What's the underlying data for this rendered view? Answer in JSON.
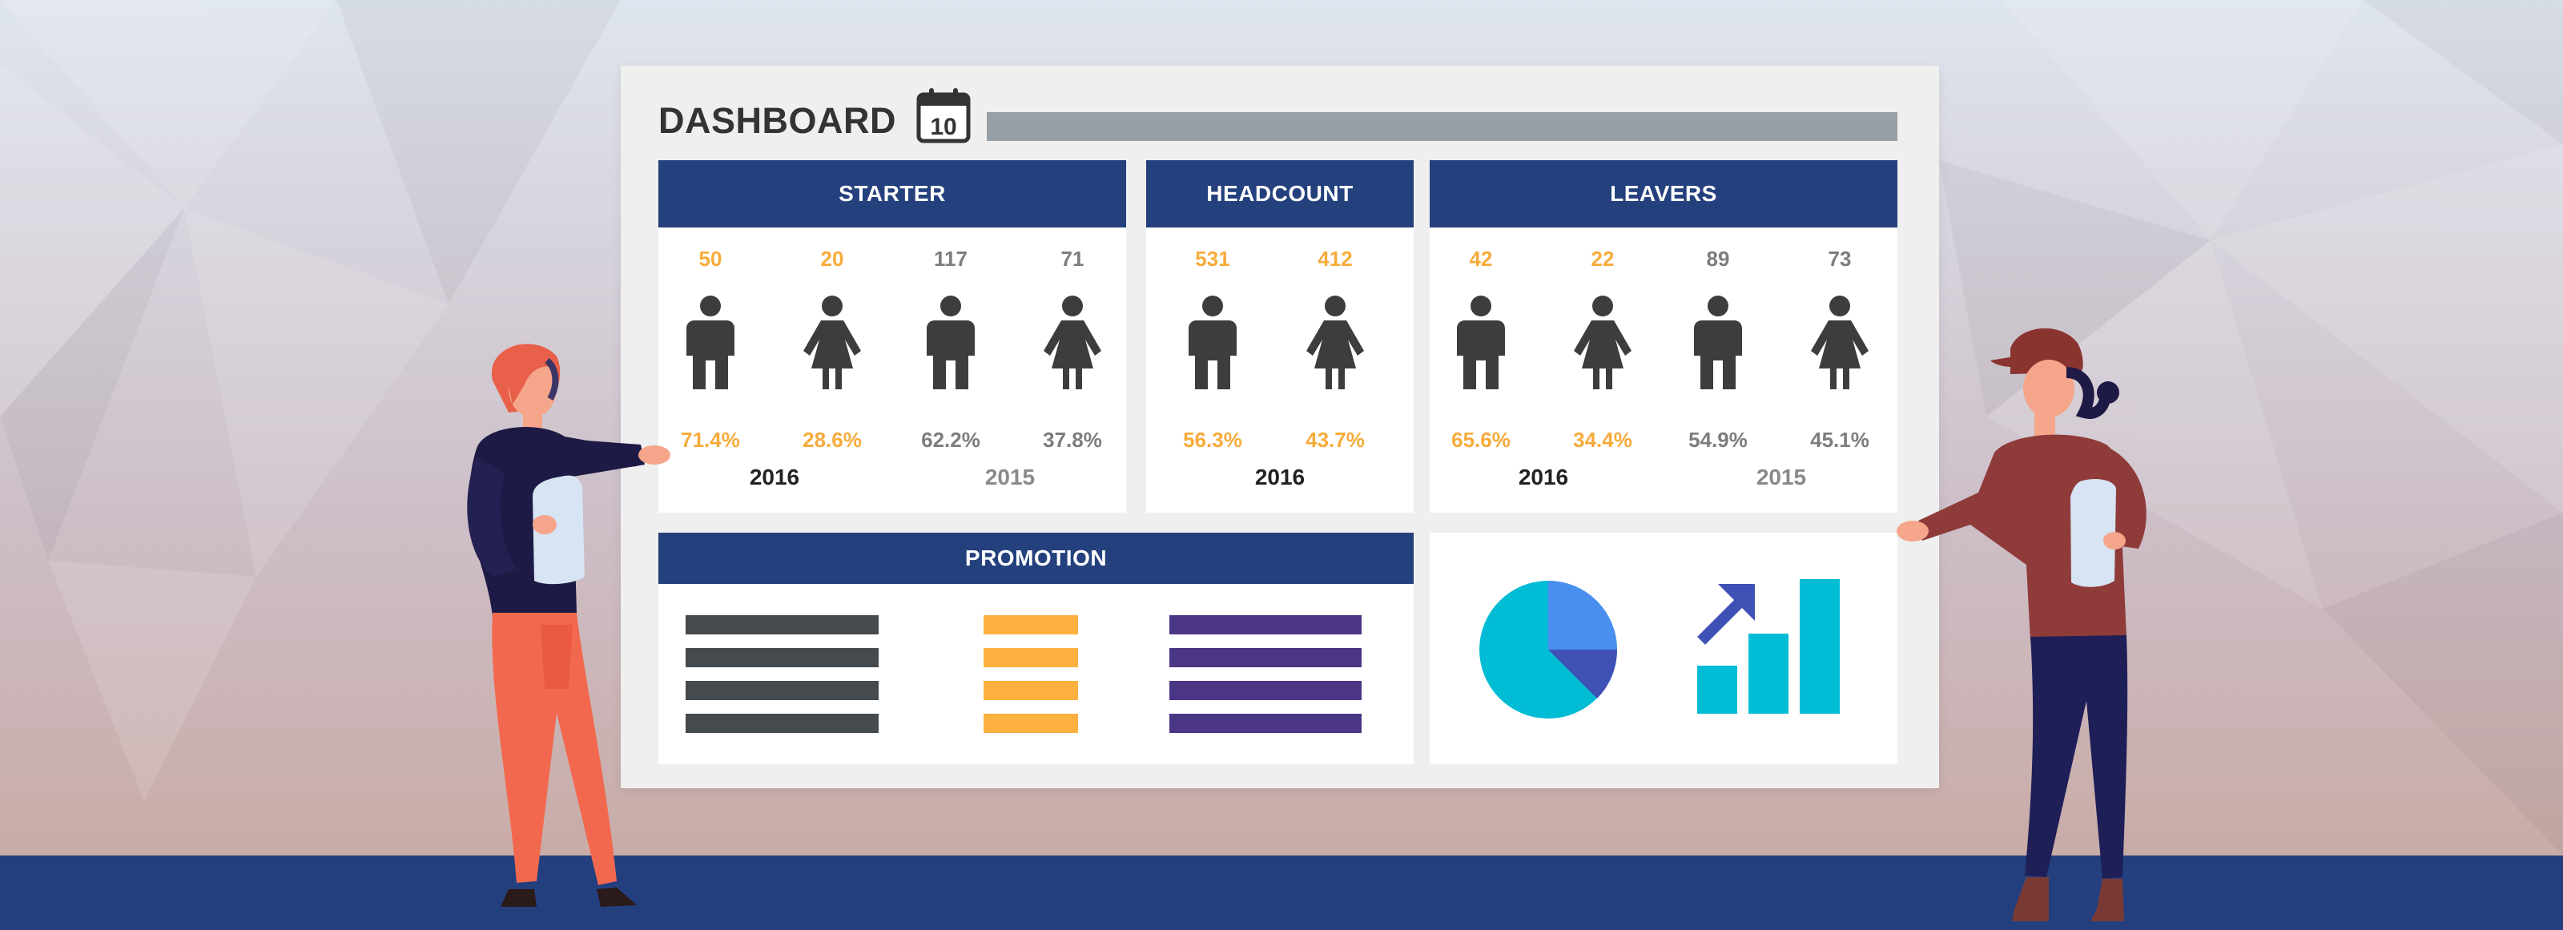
{
  "dashboard": {
    "title": "DASHBOARD",
    "calendar_day": "10"
  },
  "starter": {
    "header": "STARTER",
    "columns": [
      {
        "count": "50",
        "gender_icon": "male-icon",
        "percent": "71.4%",
        "tone": "orange"
      },
      {
        "count": "20",
        "gender_icon": "female-icon",
        "percent": "28.6%",
        "tone": "orange"
      },
      {
        "count": "117",
        "gender_icon": "male-icon",
        "percent": "62.2%",
        "tone": "gray"
      },
      {
        "count": "71",
        "gender_icon": "female-icon",
        "percent": "37.8%",
        "tone": "gray"
      }
    ],
    "years": [
      "2016",
      "2015"
    ]
  },
  "headcount": {
    "header": "HEADCOUNT",
    "columns": [
      {
        "count": "531",
        "gender_icon": "male-icon",
        "percent": "56.3%",
        "tone": "orange"
      },
      {
        "count": "412",
        "gender_icon": "female-icon",
        "percent": "43.7%",
        "tone": "orange"
      }
    ],
    "years": [
      "2016"
    ]
  },
  "leavers": {
    "header": "LEAVERS",
    "columns": [
      {
        "count": "42",
        "gender_icon": "male-icon",
        "percent": "65.6%",
        "tone": "orange"
      },
      {
        "count": "22",
        "gender_icon": "female-icon",
        "percent": "34.4%",
        "tone": "orange"
      },
      {
        "count": "89",
        "gender_icon": "male-icon",
        "percent": "54.9%",
        "tone": "gray"
      },
      {
        "count": "73",
        "gender_icon": "female-icon",
        "percent": "45.1%",
        "tone": "gray"
      }
    ],
    "years": [
      "2016",
      "2015"
    ]
  },
  "promotion": {
    "header": "PROMOTION",
    "bar_colors": [
      "#454a4f",
      "#fbb040",
      "#4b3585"
    ]
  },
  "charts_card": {
    "icons": [
      "pie-chart-icon",
      "growth-bar-chart-icon"
    ]
  },
  "colors": {
    "header_blue": "#24407d",
    "accent_orange": "#f7ab3b",
    "muted_gray": "#7d7d7d",
    "floor_blue": "#233f7e"
  }
}
